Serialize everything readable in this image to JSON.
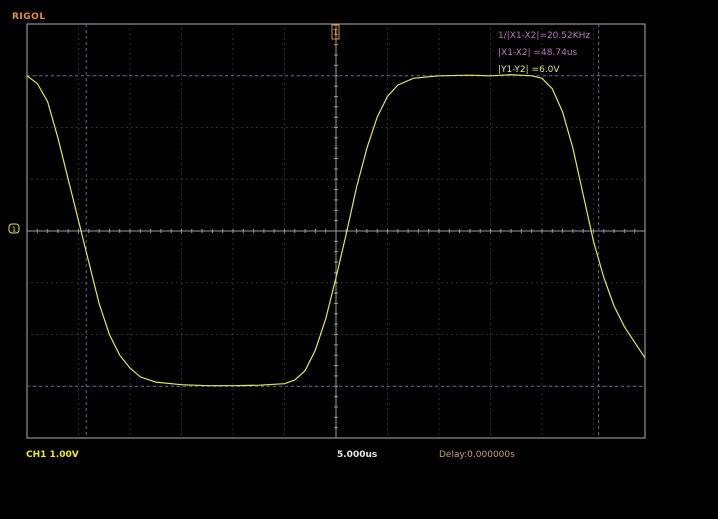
{
  "brand": "RIGOL",
  "measurements": {
    "freq": "1/|X1-X2|=20.52KHz",
    "dx": "|X1-X2|  =48.74us",
    "dy": "|Y1-Y2|  =6.0V"
  },
  "status": {
    "channel_scale": "CH1  1.00V",
    "timebase": "5.000us",
    "delay": "Delay:0.000000s"
  },
  "trigger_marker": "T",
  "channel_marker": "1",
  "colors": {
    "trace": "#e6e64a",
    "grid_dot": "#5a5a5a",
    "frame": "#b0b0b0",
    "cursor": "#5070a0",
    "brand": "#e79033"
  },
  "waveform": {
    "description_units": "divisions",
    "x_divisions": 12,
    "y_divisions": 8,
    "points": [
      [
        0.0,
        3.0
      ],
      [
        0.2,
        2.85
      ],
      [
        0.4,
        2.5
      ],
      [
        0.6,
        1.8
      ],
      [
        0.8,
        1.0
      ],
      [
        1.0,
        0.2
      ],
      [
        1.2,
        -0.6
      ],
      [
        1.4,
        -1.4
      ],
      [
        1.6,
        -2.0
      ],
      [
        1.8,
        -2.4
      ],
      [
        2.0,
        -2.65
      ],
      [
        2.2,
        -2.82
      ],
      [
        2.5,
        -2.92
      ],
      [
        3.0,
        -2.97
      ],
      [
        3.5,
        -2.99
      ],
      [
        4.0,
        -2.99
      ],
      [
        4.5,
        -2.98
      ],
      [
        5.0,
        -2.95
      ],
      [
        5.2,
        -2.88
      ],
      [
        5.4,
        -2.7
      ],
      [
        5.6,
        -2.3
      ],
      [
        5.8,
        -1.7
      ],
      [
        6.0,
        -0.9
      ],
      [
        6.2,
        -0.05
      ],
      [
        6.4,
        0.85
      ],
      [
        6.6,
        1.6
      ],
      [
        6.8,
        2.2
      ],
      [
        7.0,
        2.6
      ],
      [
        7.2,
        2.82
      ],
      [
        7.5,
        2.95
      ],
      [
        8.0,
        3.0
      ],
      [
        8.6,
        3.01
      ],
      [
        9.0,
        3.0
      ],
      [
        9.4,
        3.02
      ],
      [
        9.8,
        3.0
      ],
      [
        10.0,
        2.95
      ],
      [
        10.2,
        2.75
      ],
      [
        10.4,
        2.3
      ],
      [
        10.6,
        1.6
      ],
      [
        10.8,
        0.7
      ],
      [
        11.0,
        -0.2
      ],
      [
        11.2,
        -0.9
      ],
      [
        11.4,
        -1.45
      ],
      [
        11.6,
        -1.85
      ],
      [
        11.8,
        -2.15
      ],
      [
        12.0,
        -2.45
      ]
    ]
  }
}
